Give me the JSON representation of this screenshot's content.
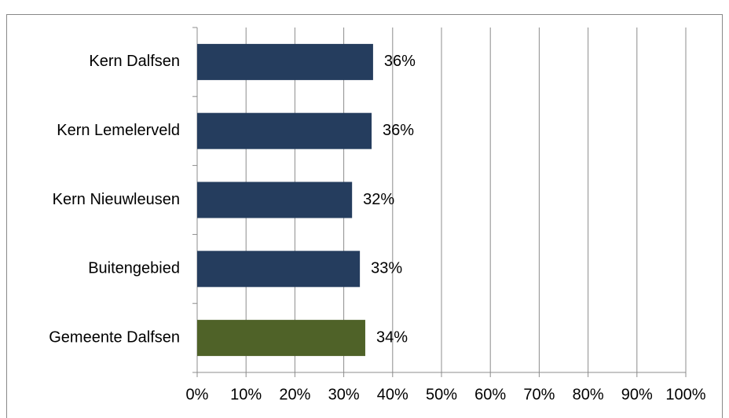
{
  "chart_data": {
    "type": "bar",
    "orientation": "horizontal",
    "categories": [
      "Kern Dalfsen",
      "Kern Lemelerveld",
      "Kern Nieuwleusen",
      "Buitengebied",
      "Gemeente Dalfsen"
    ],
    "values": [
      36.0,
      35.7,
      31.7,
      33.3,
      34.4
    ],
    "value_labels": [
      "36%",
      "36%",
      "32%",
      "33%",
      "34%"
    ],
    "colors": [
      "#253d5e",
      "#253d5e",
      "#253d5e",
      "#253d5e",
      "#4f6228"
    ],
    "xlim": [
      0,
      100
    ],
    "xticks": [
      {
        "value": 0,
        "label": "0%"
      },
      {
        "value": 10,
        "label": "10%"
      },
      {
        "value": 20,
        "label": "20%"
      },
      {
        "value": 30,
        "label": "30%"
      },
      {
        "value": 40,
        "label": "40%"
      },
      {
        "value": 50,
        "label": "50%"
      },
      {
        "value": 60,
        "label": "60%"
      },
      {
        "value": 70,
        "label": "70%"
      },
      {
        "value": 80,
        "label": "80%"
      },
      {
        "value": 90,
        "label": "90%"
      },
      {
        "value": 100,
        "label": "100%"
      }
    ],
    "grid": true
  }
}
